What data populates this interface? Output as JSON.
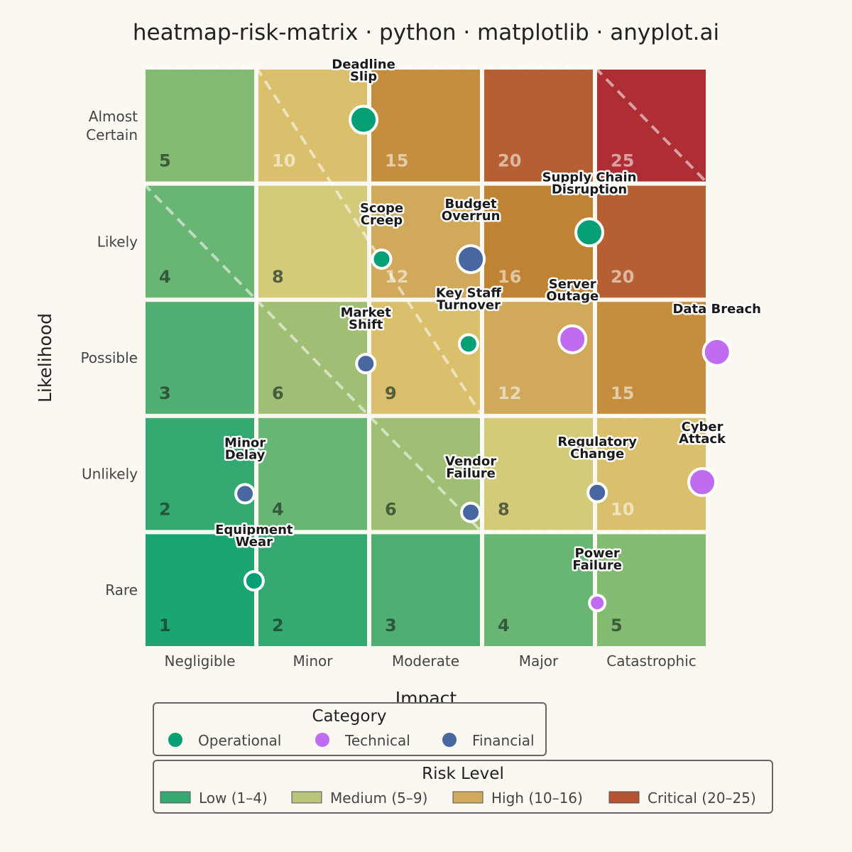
{
  "chart_data": {
    "type": "heatmap",
    "title": "heatmap-risk-matrix · python · matplotlib · anyplot.ai",
    "xlabel": "Impact",
    "ylabel": "Likelihood",
    "x_categories": [
      "Negligible",
      "Minor",
      "Moderate",
      "Major",
      "Catastrophic"
    ],
    "y_categories": [
      "Rare",
      "Unlikely",
      "Possible",
      "Likely",
      "Almost Certain"
    ],
    "y_tick_lines": [
      [
        "Rare"
      ],
      [
        "Unlikely"
      ],
      [
        "Possible"
      ],
      [
        "Likely"
      ],
      [
        "Almost",
        "Certain"
      ]
    ],
    "scores": [
      [
        1,
        2,
        3,
        4,
        5
      ],
      [
        2,
        4,
        6,
        8,
        10
      ],
      [
        3,
        6,
        9,
        12,
        15
      ],
      [
        4,
        8,
        12,
        16,
        20
      ],
      [
        5,
        10,
        15,
        20,
        25
      ]
    ],
    "score_text": [
      [
        "1",
        "2",
        "3",
        "4",
        "5"
      ],
      [
        "2",
        "4",
        "6",
        "8",
        "10"
      ],
      [
        "3",
        "6",
        "9",
        "12",
        "15"
      ],
      [
        "4",
        "8",
        "12",
        "16",
        "20"
      ],
      [
        "5",
        "10",
        "15",
        "20",
        "25"
      ]
    ],
    "cell_colors": [
      [
        "#1AA571",
        "#34AA72",
        "#4FAF73",
        "#68B574",
        "#84BB73"
      ],
      [
        "#34AA72",
        "#68B574",
        "#A0BF74",
        "#D3CA7A",
        "#DAC06C"
      ],
      [
        "#4FAF73",
        "#A0BF74",
        "#DAC06C",
        "#D0A95A",
        "#C48E3E"
      ],
      [
        "#68B574",
        "#D3CA7A",
        "#D0A95A",
        "#BF8333",
        "#B65F33"
      ],
      [
        "#84BB73",
        "#DAC06C",
        "#C48E3E",
        "#B65F33",
        "#AE2E33"
      ]
    ],
    "categories": [
      {
        "name": "Operational",
        "color": "#079F74"
      },
      {
        "name": "Technical",
        "color": "#C06CF0"
      },
      {
        "name": "Financial",
        "color": "#4867A0"
      }
    ],
    "risks": [
      {
        "name": "Deadline Slip",
        "lines": [
          "Deadline",
          "Slip"
        ],
        "impact": 1.95,
        "likelihood": 4.55,
        "category": "Operational",
        "size": "large"
      },
      {
        "name": "Scope Creep",
        "lines": [
          "Scope",
          "Creep"
        ],
        "impact": 2.11,
        "likelihood": 3.35,
        "category": "Operational",
        "size": "small"
      },
      {
        "name": "Supply Chain Disruption",
        "lines": [
          "Supply Chain",
          "Disruption"
        ],
        "impact": 3.95,
        "likelihood": 3.58,
        "category": "Operational",
        "size": "large"
      },
      {
        "name": "Budget Overrun",
        "lines": [
          "Budget",
          "Overrun"
        ],
        "impact": 2.9,
        "likelihood": 3.35,
        "category": "Financial",
        "size": "large"
      },
      {
        "name": "Data Breach",
        "lines": [
          "Data Breach"
        ],
        "impact": 5.08,
        "likelihood": 2.55,
        "category": "Technical",
        "size": "large"
      },
      {
        "name": "Market Shift",
        "lines": [
          "Market",
          "Shift"
        ],
        "impact": 1.97,
        "likelihood": 2.45,
        "category": "Financial",
        "size": "small"
      },
      {
        "name": "Key Staff Turnover",
        "lines": [
          "Key Staff",
          "Turnover"
        ],
        "impact": 2.88,
        "likelihood": 2.62,
        "category": "Operational",
        "size": "small"
      },
      {
        "name": "Server Outage",
        "lines": [
          "Server",
          "Outage"
        ],
        "impact": 3.8,
        "likelihood": 2.66,
        "category": "Technical",
        "size": "large"
      },
      {
        "name": "Minor Delay",
        "lines": [
          "Minor",
          "Delay"
        ],
        "impact": 0.9,
        "likelihood": 1.33,
        "category": "Financial",
        "size": "small"
      },
      {
        "name": "Vendor Failure",
        "lines": [
          "Vendor",
          "Failure"
        ],
        "impact": 2.9,
        "likelihood": 1.17,
        "category": "Financial",
        "size": "small"
      },
      {
        "name": "Regulatory Change",
        "lines": [
          "Regulatory",
          "Change"
        ],
        "impact": 4.02,
        "likelihood": 1.34,
        "category": "Financial",
        "size": "small"
      },
      {
        "name": "Cyber Attack",
        "lines": [
          "Cyber",
          "Attack"
        ],
        "impact": 4.95,
        "likelihood": 1.43,
        "category": "Technical",
        "size": "large"
      },
      {
        "name": "Equipment Wear",
        "lines": [
          "Equipment",
          "Wear"
        ],
        "impact": 0.98,
        "likelihood": 0.58,
        "category": "Operational",
        "size": "small"
      },
      {
        "name": "Power Failure",
        "lines": [
          "Power",
          "Failure"
        ],
        "impact": 4.02,
        "likelihood": 0.39,
        "category": "Technical",
        "size": "tiny"
      }
    ],
    "legend_category": {
      "title": "Category",
      "placement": "bottom-center"
    },
    "legend_risk": {
      "title": "Risk Level",
      "placement": "bottom-center",
      "entries": [
        {
          "name": "Low (1–4)",
          "color": "#34AA72"
        },
        {
          "name": "Medium (5–9)",
          "color": "#B9C57A"
        },
        {
          "name": "High (10–16)",
          "color": "#D0A95A"
        },
        {
          "name": "Critical (20–25)",
          "color": "#B65332"
        }
      ]
    },
    "grid": false
  }
}
